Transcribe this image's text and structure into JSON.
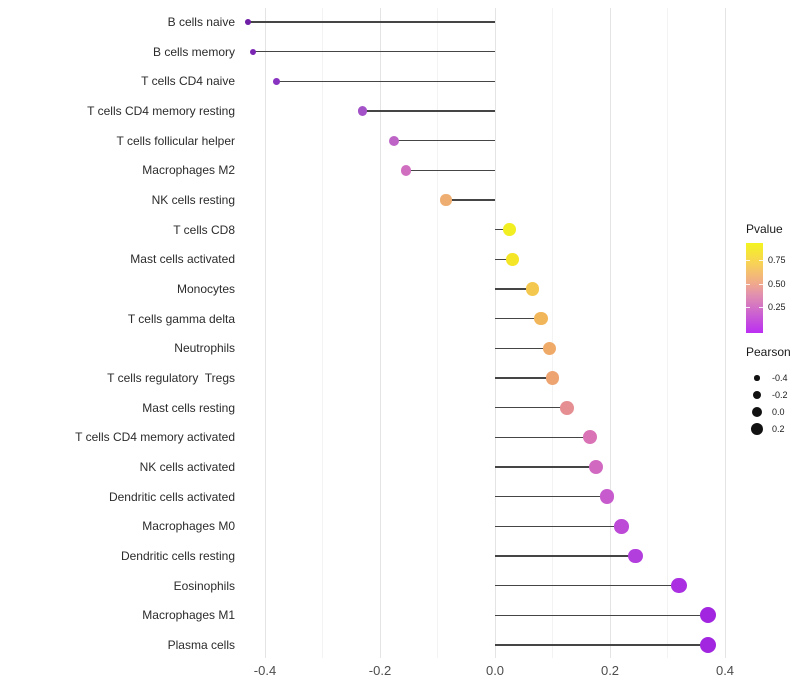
{
  "x_axis": {
    "tick_labels": [
      "-0.4",
      "-0.2",
      "0.0",
      "0.2",
      "0.4"
    ],
    "tick_values": [
      -0.4,
      -0.2,
      0.0,
      0.2,
      0.4
    ],
    "minor_tick_values": [
      -0.3,
      -0.1,
      0.1,
      0.3
    ]
  },
  "legend_pvalue": {
    "title": "Pvalue",
    "tick_labels": [
      "0.75",
      "0.50",
      "0.25"
    ],
    "tick_values": [
      0.75,
      0.5,
      0.25
    ],
    "gradient_top_color": "#f3f420",
    "gradient_bottom_color": "#bb2ef2"
  },
  "legend_pearson": {
    "title": "Pearson",
    "items": [
      {
        "label": "-0.4",
        "value": -0.4
      },
      {
        "label": "-0.2",
        "value": -0.2
      },
      {
        "label": "0.0",
        "value": 0.0
      },
      {
        "label": "0.2",
        "value": 0.2
      }
    ],
    "dot_color": "#111111"
  },
  "chart_data": {
    "type": "scatter",
    "subtype": "lollipop",
    "title": "",
    "xlabel": "",
    "ylabel": "",
    "xlim": [
      -0.46,
      0.41
    ],
    "x_ticks": [
      -0.4,
      -0.2,
      0.0,
      0.2,
      0.4
    ],
    "grid": true,
    "legend_position": "right",
    "color_encodes": "Pvalue",
    "size_encodes": "Pearson",
    "categories": [
      "B cells naive",
      "B cells memory",
      "T cells CD4 naive",
      "T cells CD4 memory resting",
      "T cells follicular helper",
      "Macrophages M2",
      "NK cells resting",
      "T cells CD8",
      "Mast cells activated",
      "Monocytes",
      "T cells gamma delta",
      "Neutrophils",
      "T cells regulatory  Tregs",
      "Mast cells resting",
      "T cells CD4 memory activated",
      "NK cells activated",
      "Dendritic cells activated",
      "Macrophages M0",
      "Dendritic cells resting",
      "Eosinophils",
      "Macrophages M1",
      "Plasma cells"
    ],
    "series": [
      {
        "name": "Pearson correlation",
        "values": [
          -0.43,
          -0.42,
          -0.38,
          -0.23,
          -0.175,
          -0.155,
          -0.085,
          0.025,
          0.03,
          0.065,
          0.08,
          0.095,
          0.1,
          0.125,
          0.165,
          0.175,
          0.195,
          0.22,
          0.245,
          0.32,
          0.37,
          0.37
        ]
      }
    ],
    "point_colors": [
      "#6e1fa6",
      "#7b27b4",
      "#8933c1",
      "#a352c8",
      "#bd64c6",
      "#d06ec0",
      "#eeae72",
      "#f1ee21",
      "#f4e526",
      "#f4c84f",
      "#f2b65a",
      "#f0aa68",
      "#eda471",
      "#e68f93",
      "#d973b6",
      "#d169c1",
      "#c75bcd",
      "#bc4ad7",
      "#b33ede",
      "#aa30e2",
      "#a226e0",
      "#a226e0"
    ],
    "stem_color": "#454545",
    "baseline_x": 0.0
  }
}
